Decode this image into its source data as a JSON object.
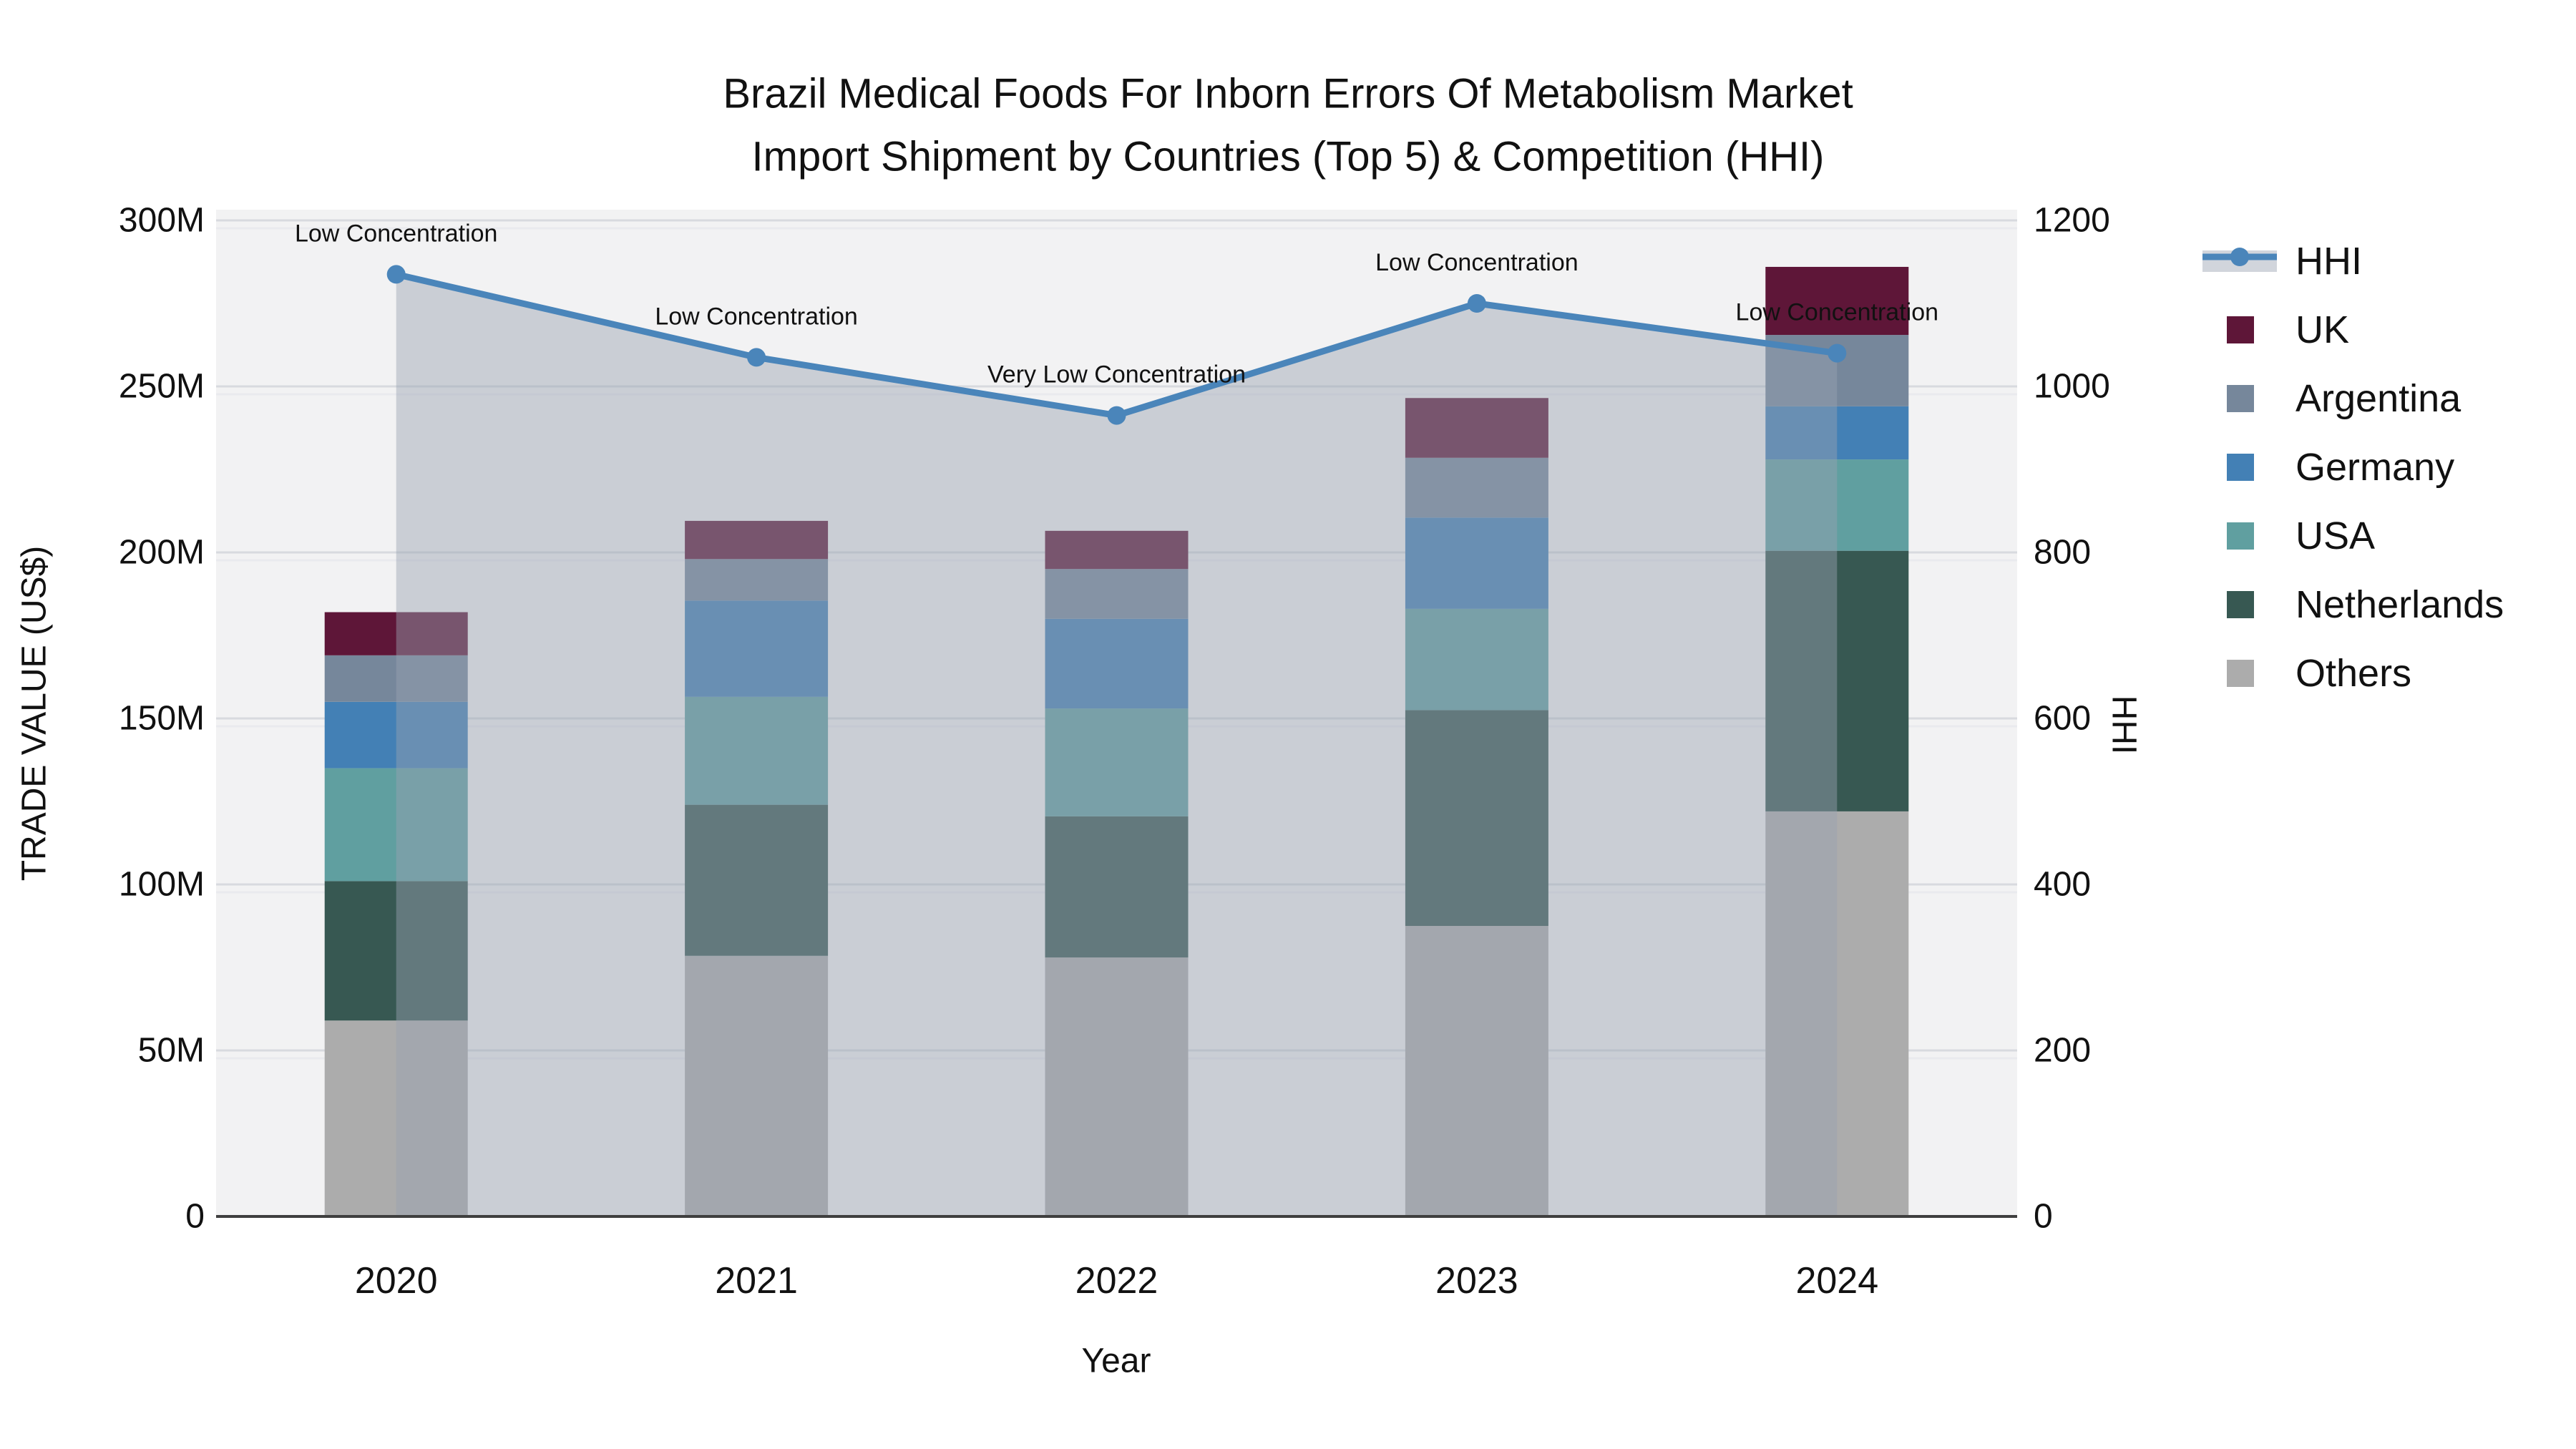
{
  "title": {
    "line1": "Brazil Medical Foods For Inborn Errors Of Metabolism Market",
    "line2": "Import Shipment by Countries (Top 5) & Competition (HHI)"
  },
  "chart_data": {
    "type": "bar",
    "subtype": "stacked-bars-with-line-overlay",
    "categories": [
      "2020",
      "2021",
      "2022",
      "2023",
      "2024"
    ],
    "xlabel": "Year",
    "ylabel_left": "TRADE VALUE (US$)",
    "ylabel_right": "HHI",
    "y_left": {
      "ticks": [
        "0",
        "50M",
        "100M",
        "150M",
        "200M",
        "250M",
        "300M"
      ],
      "min": 0,
      "max": 300,
      "unit": "M US$"
    },
    "y_right": {
      "ticks": [
        "0",
        "200",
        "400",
        "600",
        "800",
        "1000",
        "1200"
      ],
      "min": 0,
      "max": 1200
    },
    "stack_series": [
      {
        "name": "Others",
        "color": "#ACACAC",
        "values": [
          59,
          78.5,
          78,
          87.5,
          122
        ]
      },
      {
        "name": "Netherlands",
        "color": "#375852",
        "values": [
          42,
          45.5,
          42.5,
          65,
          78.5
        ]
      },
      {
        "name": "USA",
        "color": "#609FA0",
        "values": [
          34,
          32.5,
          32.5,
          30.5,
          27.5
        ]
      },
      {
        "name": "Germany",
        "color": "#4380B5",
        "values": [
          20,
          29,
          27,
          27.5,
          16
        ]
      },
      {
        "name": "Argentina",
        "color": "#76879B",
        "values": [
          14,
          12.5,
          15,
          18,
          21.5
        ]
      },
      {
        "name": "UK",
        "color": "#5E1638",
        "values": [
          13,
          11.5,
          11.5,
          18,
          20.5
        ]
      }
    ],
    "bar_totals": [
      182,
      209.5,
      206.5,
      246.5,
      286
    ],
    "line_series": {
      "name": "HHI",
      "color": "#4A85BA",
      "area_fill": "rgba(152,161,178,0.45)",
      "values": [
        1135,
        1035,
        965,
        1100,
        1040
      ]
    },
    "annotations": [
      "Low Concentration",
      "Low Concentration",
      "Very Low Concentration",
      "Low Concentration",
      "Low Concentration"
    ],
    "grid": "on",
    "legend_position": "right"
  },
  "legend": {
    "items": [
      {
        "label": "HHI",
        "marker": "line-dot-band",
        "color": "#4A85BA"
      },
      {
        "label": "UK",
        "marker": "square",
        "color": "#5E1638"
      },
      {
        "label": "Argentina",
        "marker": "square",
        "color": "#76879B"
      },
      {
        "label": "Germany",
        "marker": "square",
        "color": "#4380B5"
      },
      {
        "label": "USA",
        "marker": "square",
        "color": "#609FA0"
      },
      {
        "label": "Netherlands",
        "marker": "square",
        "color": "#375852"
      },
      {
        "label": "Others",
        "marker": "square",
        "color": "#ACACAC"
      }
    ]
  },
  "colors": {
    "plot_bg": "#F2F2F3",
    "gridline": "#D8DADF",
    "gridline_secondary": "#E9EAEE",
    "axis_line": "#3F3F3F",
    "text": "#111111"
  }
}
